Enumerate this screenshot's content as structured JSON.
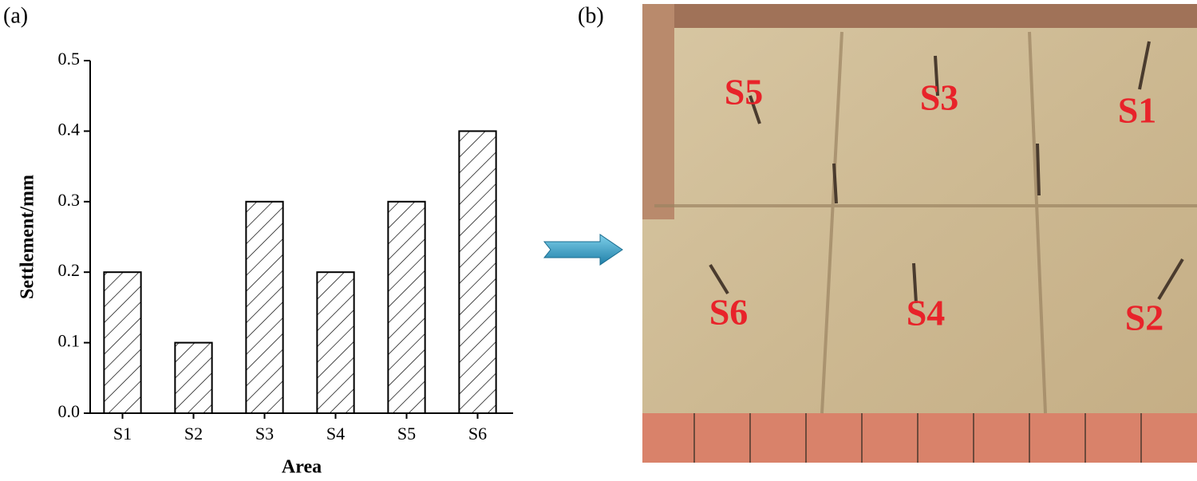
{
  "panels": {
    "a": "(a)",
    "b": "(b)"
  },
  "chart_data": {
    "type": "bar",
    "x_label": "Area",
    "y_label": "Settlement/mm",
    "categories": [
      "S1",
      "S2",
      "S3",
      "S4",
      "S5",
      "S6"
    ],
    "values": [
      0.2,
      0.1,
      0.3,
      0.2,
      0.3,
      0.4
    ],
    "color": "#000000",
    "pattern": "hatch",
    "ylim": [
      0,
      0.5
    ],
    "yticks": [
      {
        "value": 0,
        "label": "0.0"
      },
      0.1,
      0.2,
      0.3,
      0.4,
      0.5
    ],
    "grid": false
  },
  "photo": {
    "labels": [
      "S5",
      "S3",
      "S1",
      "S6",
      "S4",
      "S2"
    ]
  }
}
